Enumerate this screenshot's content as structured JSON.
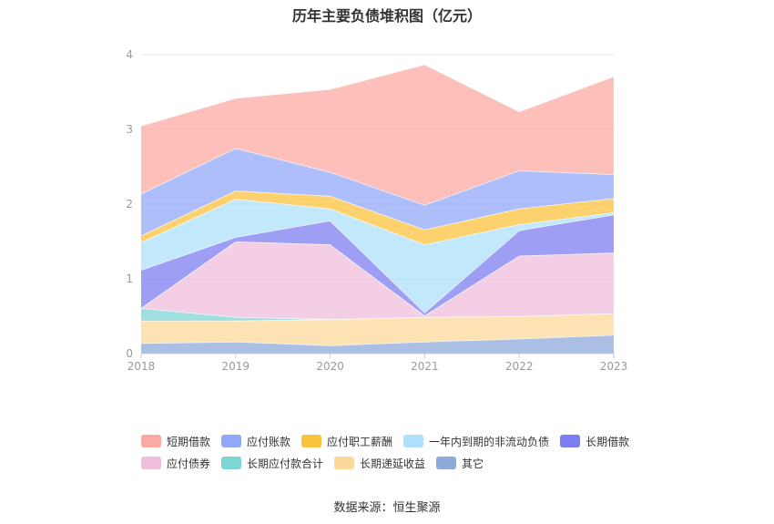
{
  "chart_data": {
    "type": "area",
    "stacked": true,
    "title": "历年主要负债堆积图（亿元）",
    "x": [
      "2018",
      "2019",
      "2020",
      "2021",
      "2022",
      "2023"
    ],
    "ylim": [
      0,
      4
    ],
    "yticks": [
      "0",
      "1",
      "2",
      "3",
      "4"
    ],
    "grid": true,
    "legend_position": "bottom",
    "series": [
      {
        "name": "其它",
        "color": "#8eaad9",
        "values": [
          0.14,
          0.16,
          0.11,
          0.16,
          0.2,
          0.25
        ]
      },
      {
        "name": "长期递延收益",
        "color": "#fcd99b",
        "values": [
          0.3,
          0.28,
          0.35,
          0.33,
          0.3,
          0.29
        ]
      },
      {
        "name": "长期应付款合计",
        "color": "#7fd4d4",
        "values": [
          0.17,
          0.05,
          0.0,
          0.0,
          0.0,
          0.0
        ]
      },
      {
        "name": "应付债券",
        "color": "#efbedc",
        "values": [
          0.0,
          1.01,
          1.0,
          0.02,
          0.81,
          0.81
        ]
      },
      {
        "name": "长期借款",
        "color": "#7c7df0",
        "values": [
          0.51,
          0.06,
          0.32,
          0.04,
          0.34,
          0.51
        ]
      },
      {
        "name": "一年内到期的非流动负债",
        "color": "#aee0f9",
        "values": [
          0.37,
          0.51,
          0.16,
          0.91,
          0.08,
          0.03
        ]
      },
      {
        "name": "应付职工薪酬",
        "color": "#fcc23c",
        "values": [
          0.09,
          0.11,
          0.17,
          0.2,
          0.21,
          0.19
        ]
      },
      {
        "name": "应付账款",
        "color": "#91a8f8",
        "values": [
          0.56,
          0.57,
          0.32,
          0.33,
          0.51,
          0.32
        ]
      },
      {
        "name": "短期借款",
        "color": "#fba9a1",
        "values": [
          0.91,
          0.67,
          1.11,
          1.88,
          0.79,
          1.31
        ]
      }
    ]
  },
  "legend_rows": [
    [
      {
        "name": "短期借款",
        "color": "#fba9a1"
      },
      {
        "name": "应付账款",
        "color": "#91a8f8"
      },
      {
        "name": "应付职工薪酬",
        "color": "#fcc23c"
      },
      {
        "name": "一年内到期的非流动负债",
        "color": "#aee0f9"
      },
      {
        "name": "长期借款",
        "color": "#7c7df0"
      }
    ],
    [
      {
        "name": "应付债券",
        "color": "#efbedc"
      },
      {
        "name": "长期应付款合计",
        "color": "#7fd4d4"
      },
      {
        "name": "长期递延收益",
        "color": "#fcd99b"
      },
      {
        "name": "其它",
        "color": "#8eaad9"
      }
    ]
  ],
  "source": "数据来源：恒生聚源"
}
